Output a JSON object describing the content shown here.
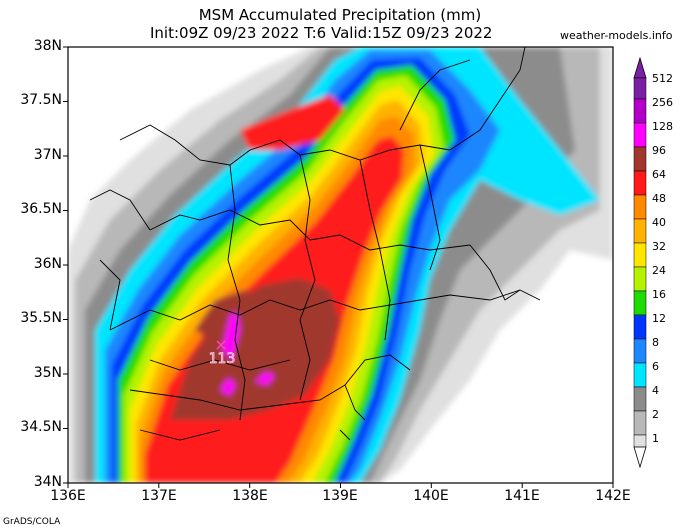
{
  "title_line1": "MSM Accumulated Precipitation (mm)",
  "title_line2": "Init:09Z 09/23 2022  T:6 Valid:15Z 09/23 2022",
  "site": "weather-models.info",
  "credit": "GrADS/COLA",
  "axes": {
    "lat_labels": [
      "38N",
      "37.5N",
      "37N",
      "36.5N",
      "36N",
      "35.5N",
      "35N",
      "34.5N",
      "34N"
    ],
    "lon_labels": [
      "136E",
      "137E",
      "138E",
      "139E",
      "140E",
      "141E",
      "142E"
    ]
  },
  "marker": {
    "symbol": "×",
    "label": "113",
    "color": "#ff4aa5"
  },
  "colorbar": {
    "labels": [
      "512",
      "256",
      "128",
      "96",
      "64",
      "48",
      "40",
      "32",
      "24",
      "16",
      "12",
      "8",
      "6",
      "4",
      "2",
      "1"
    ],
    "colors": [
      "#7b1fa2",
      "#b200c8",
      "#ff00ff",
      "#a0372f",
      "#ff1a1a",
      "#ff8a00",
      "#ffb300",
      "#ffe600",
      "#b5f200",
      "#1edc00",
      "#0037ff",
      "#1e86ff",
      "#00e5ff",
      "#8c8c8c",
      "#b8b8b8",
      "#e0e0e0"
    ]
  }
}
